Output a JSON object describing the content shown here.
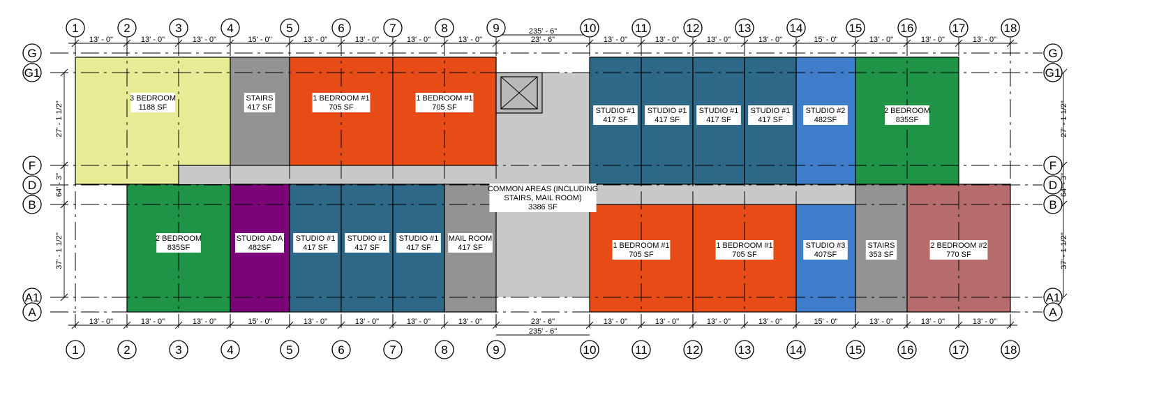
{
  "colors": {
    "three_bedroom": "#e8eb96",
    "stairs": "#939393",
    "one_bedroom": "#e74c16",
    "studio1": "#2e6888",
    "studio2": "#3f7dcb",
    "two_bedroom": "#1f9447",
    "studio_ada": "#7b0478",
    "mail_room": "#939393",
    "common": "#c8c8c8",
    "two_bedroom2": "#b66c6c"
  },
  "grid": {
    "columns": [
      "1",
      "2",
      "3",
      "4",
      "5",
      "6",
      "7",
      "8",
      "9",
      "10",
      "11",
      "12",
      "13",
      "14",
      "15",
      "16",
      "17",
      "18"
    ],
    "rows": [
      "G",
      "G1",
      "F",
      "D",
      "B",
      "A1",
      "A"
    ]
  },
  "dimensions": {
    "top_segments": [
      "13' - 0\"",
      "13' - 0\"",
      "13' - 0\"",
      "15' - 0\"",
      "13' - 0\"",
      "13' - 0\"",
      "13' - 0\"",
      "13' - 0\"",
      "23' - 6\"",
      "13' - 0\"",
      "13' - 0\"",
      "13' - 0\"",
      "13' - 0\"",
      "15' - 0\"",
      "13' - 0\"",
      "13' - 0\"",
      "13' - 0\""
    ],
    "bottom_segments": [
      "13' - 0\"",
      "13' - 0\"",
      "13' - 0\"",
      "15' - 0\"",
      "13' - 0\"",
      "13' - 0\"",
      "13' - 0\"",
      "13' - 0\"",
      "23' - 6\"",
      "13' - 0\"",
      "13' - 0\"",
      "13' - 0\"",
      "13' - 0\"",
      "15' - 0\"",
      "13' - 0\"",
      "13' - 0\"",
      "13' - 0\""
    ],
    "overall": "235' - 6\"",
    "upper_depth": "27' - 1 1/2\"",
    "corridor_depth": "64' - 3\"",
    "lower_depth": "37' - 1 1/2\""
  },
  "rooms": [
    {
      "key": "three_bedroom",
      "color": "three_bedroom",
      "lines": [
        "3 BEDROOM",
        "1188 SF"
      ]
    },
    {
      "key": "stairs_north",
      "color": "stairs",
      "lines": [
        "STAIRS",
        "417 SF"
      ]
    },
    {
      "key": "one_bed_n1",
      "color": "one_bedroom",
      "lines": [
        "1 BEDROOM #1",
        "705 SF"
      ]
    },
    {
      "key": "one_bed_n2",
      "color": "one_bedroom",
      "lines": [
        "1 BEDROOM #1",
        "705 SF"
      ]
    },
    {
      "key": "studio_n1",
      "color": "studio1",
      "lines": [
        "STUDIO #1",
        "417 SF"
      ]
    },
    {
      "key": "studio_n2",
      "color": "studio1",
      "lines": [
        "STUDIO #1",
        "417 SF"
      ]
    },
    {
      "key": "studio_n3",
      "color": "studio1",
      "lines": [
        "STUDIO #1",
        "417 SF"
      ]
    },
    {
      "key": "studio_n4",
      "color": "studio1",
      "lines": [
        "STUDIO #1",
        "417 SF"
      ]
    },
    {
      "key": "studio2_n",
      "color": "studio2",
      "lines": [
        "STUDIO #2",
        "482SF"
      ]
    },
    {
      "key": "two_bed_n",
      "color": "two_bedroom",
      "lines": [
        "2 BEDROOM",
        "835SF"
      ]
    },
    {
      "key": "two_bed_s",
      "color": "two_bedroom",
      "lines": [
        "2 BEDROOM",
        "835SF"
      ]
    },
    {
      "key": "studio_ada",
      "color": "studio_ada",
      "lines": [
        "STUDIO ADA",
        "482SF"
      ]
    },
    {
      "key": "studio_s1",
      "color": "studio1",
      "lines": [
        "STUDIO #1",
        "417 SF"
      ]
    },
    {
      "key": "studio_s2",
      "color": "studio1",
      "lines": [
        "STUDIO #1",
        "417 SF"
      ]
    },
    {
      "key": "studio_s3",
      "color": "studio1",
      "lines": [
        "STUDIO #1",
        "417 SF"
      ]
    },
    {
      "key": "mail_room",
      "color": "mail_room",
      "lines": [
        "MAIL ROOM",
        "417 SF"
      ]
    },
    {
      "key": "one_bed_s1",
      "color": "one_bedroom",
      "lines": [
        "1 BEDROOM #1",
        "705 SF"
      ]
    },
    {
      "key": "one_bed_s2",
      "color": "one_bedroom",
      "lines": [
        "1 BEDROOM #1",
        "705 SF"
      ]
    },
    {
      "key": "studio3_s",
      "color": "studio2",
      "lines": [
        "STUDIO #3",
        "407SF"
      ]
    },
    {
      "key": "stairs_south",
      "color": "stairs",
      "lines": [
        "STAIRS",
        "353 SF"
      ]
    },
    {
      "key": "two_bed2_s",
      "color": "two_bedroom2",
      "lines": [
        "2 BEDROOM #2",
        "770 SF"
      ]
    },
    {
      "key": "common",
      "color": "common",
      "lines": [
        "COMMON AREAS (INCLUDING",
        "STAIRS, MAIL ROOM)",
        "3386 SF"
      ]
    }
  ]
}
